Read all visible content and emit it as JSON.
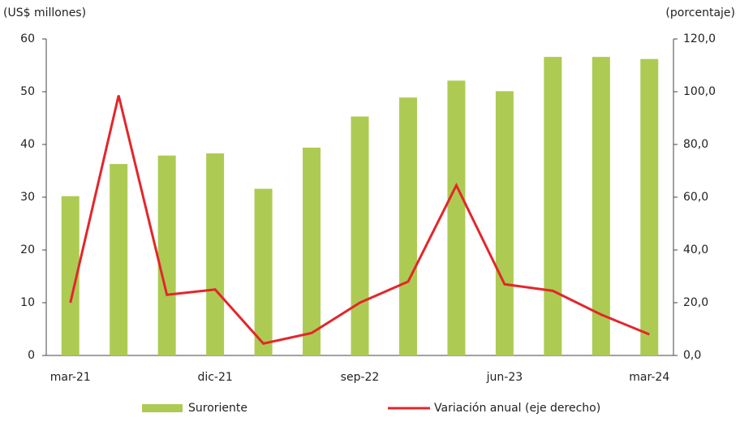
{
  "chart_data": {
    "type": "bar",
    "y_label": "(US$ millones)",
    "y2_label": "(porcentaje)",
    "categories": [
      "mar-21",
      null,
      null,
      "dic-21",
      null,
      null,
      "sep-22",
      null,
      null,
      "jun-23",
      null,
      null,
      "mar-24"
    ],
    "series": [
      {
        "name": "Suroriente",
        "type": "bar",
        "color": "#adcb52",
        "values": [
          30.2,
          36.3,
          37.9,
          38.3,
          31.6,
          39.4,
          45.3,
          48.9,
          52.1,
          50.1,
          56.6,
          56.6,
          56.2
        ]
      },
      {
        "name": "Variación anual (eje derecho)",
        "type": "line",
        "axis": "y2",
        "color": "#e3262b",
        "values": [
          20,
          98.6,
          23,
          25,
          4.5,
          8.5,
          20,
          28,
          64.5,
          27,
          24.5,
          15.5,
          8
        ]
      }
    ],
    "ylim": [
      0,
      60
    ],
    "yticks": [
      0,
      10,
      20,
      30,
      40,
      50,
      60
    ],
    "y2lim": [
      0,
      120
    ],
    "y2ticks": [
      {
        "value": 0,
        "label": "0,0"
      },
      {
        "value": 20,
        "label": "20,0"
      },
      {
        "value": 40,
        "label": "40,0"
      },
      {
        "value": 60,
        "label": "60,0"
      },
      {
        "value": 80,
        "label": "80,0"
      },
      {
        "value": 100,
        "label": "100,0"
      },
      {
        "value": 120,
        "label": "120,0"
      }
    ],
    "grid": false
  }
}
